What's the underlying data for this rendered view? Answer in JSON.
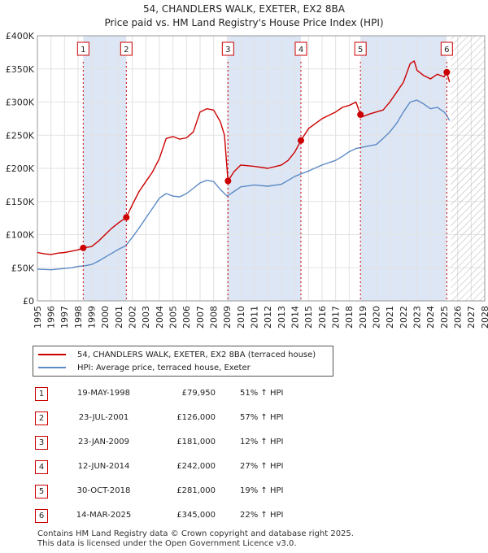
{
  "title_line1": "54, CHANDLERS WALK, EXETER, EX2 8BA",
  "title_line2": "Price paid vs. HM Land Registry's House Price Index (HPI)",
  "legend": {
    "property": "54, CHANDLERS WALK, EXETER, EX2 8BA (terraced house)",
    "hpi": "HPI: Average price, terraced house, Exeter"
  },
  "colors": {
    "property": "#cc0000",
    "hpi": "#5b8ac5",
    "shade": "#dde6f5",
    "marker": "#cc0000"
  },
  "sales": [
    {
      "num": "1",
      "date": "19-MAY-1998",
      "price": "£79,950",
      "hpi": "51% ↑ HPI"
    },
    {
      "num": "2",
      "date": "23-JUL-2001",
      "price": "£126,000",
      "hpi": "57% ↑ HPI"
    },
    {
      "num": "3",
      "date": "23-JAN-2009",
      "price": "£181,000",
      "hpi": "12% ↑ HPI"
    },
    {
      "num": "4",
      "date": "12-JUN-2014",
      "price": "£242,000",
      "hpi": "27% ↑ HPI"
    },
    {
      "num": "5",
      "date": "30-OCT-2018",
      "price": "£281,000",
      "hpi": "19% ↑ HPI"
    },
    {
      "num": "6",
      "date": "14-MAR-2025",
      "price": "£345,000",
      "hpi": "22% ↑ HPI"
    }
  ],
  "footer_line1": "Contains HM Land Registry data © Crown copyright and database right 2025.",
  "footer_line2": "This data is licensed under the Open Government Licence v3.0.",
  "chart_data": {
    "type": "line",
    "title": "54, CHANDLERS WALK, EXETER, EX2 8BA",
    "subtitle": "Price paid vs. HM Land Registry's House Price Index (HPI)",
    "xlabel": "",
    "ylabel": "",
    "xlim": [
      1995,
      2028
    ],
    "ylim": [
      0,
      400000
    ],
    "y_ticks": [
      0,
      50000,
      100000,
      150000,
      200000,
      250000,
      300000,
      350000,
      400000
    ],
    "y_tick_labels": [
      "£0",
      "£50K",
      "£100K",
      "£150K",
      "£200K",
      "£250K",
      "£300K",
      "£350K",
      "£400K"
    ],
    "x_ticks": [
      1995,
      1996,
      1997,
      1998,
      1999,
      2000,
      2001,
      2002,
      2003,
      2004,
      2005,
      2006,
      2007,
      2008,
      2009,
      2010,
      2011,
      2012,
      2013,
      2014,
      2015,
      2016,
      2017,
      2018,
      2019,
      2020,
      2021,
      2022,
      2023,
      2024,
      2025,
      2026,
      2027,
      2028
    ],
    "grid": true,
    "projection_start": 2025.5,
    "shaded_periods": [
      [
        1998.38,
        2001.56
      ],
      [
        2009.06,
        2014.44
      ],
      [
        2018.83,
        2025.2
      ]
    ],
    "sale_events": [
      {
        "label": "1",
        "x": 1998.38,
        "y": 79950
      },
      {
        "label": "2",
        "x": 2001.56,
        "y": 126000
      },
      {
        "label": "3",
        "x": 2009.06,
        "y": 181000
      },
      {
        "label": "4",
        "x": 2014.44,
        "y": 242000
      },
      {
        "label": "5",
        "x": 2018.83,
        "y": 281000
      },
      {
        "label": "6",
        "x": 2025.2,
        "y": 345000
      }
    ],
    "series": [
      {
        "name": "54, CHANDLERS WALK, EXETER, EX2 8BA (terraced house)",
        "x": [
          1995,
          1995.5,
          1996,
          1996.5,
          1997,
          1997.5,
          1998,
          1998.38,
          1999,
          1999.5,
          2000,
          2000.5,
          2001,
          2001.56,
          2002,
          2002.5,
          2003,
          2003.5,
          2004,
          2004.5,
          2005,
          2005.5,
          2006,
          2006.5,
          2007,
          2007.5,
          2008,
          2008.5,
          2008.8,
          2009.06,
          2009.5,
          2010,
          2011,
          2012,
          2013,
          2013.5,
          2014,
          2014.44,
          2015,
          2016,
          2017,
          2017.5,
          2018,
          2018.5,
          2018.83,
          2019,
          2019.5,
          2020,
          2020.5,
          2021,
          2021.5,
          2022,
          2022.5,
          2022.8,
          2023,
          2023.5,
          2024,
          2024.5,
          2025,
          2025.2,
          2025.4
        ],
        "values": [
          73000,
          71000,
          70000,
          72000,
          73000,
          75000,
          77000,
          79950,
          82000,
          90000,
          100000,
          110000,
          118000,
          126000,
          145000,
          165000,
          180000,
          195000,
          215000,
          245000,
          248000,
          244000,
          246000,
          255000,
          285000,
          290000,
          288000,
          270000,
          250000,
          181000,
          195000,
          205000,
          203000,
          200000,
          205000,
          212000,
          225000,
          242000,
          260000,
          275000,
          285000,
          292000,
          295000,
          300000,
          281000,
          278000,
          282000,
          285000,
          288000,
          300000,
          315000,
          330000,
          358000,
          362000,
          348000,
          340000,
          335000,
          342000,
          338000,
          345000,
          330000
        ]
      },
      {
        "name": "HPI: Average price, terraced house, Exeter",
        "x": [
          1995,
          1995.5,
          1996,
          1996.5,
          1997,
          1997.5,
          1998,
          1998.5,
          1999,
          1999.5,
          2000,
          2000.5,
          2001,
          2001.5,
          2002,
          2002.5,
          2003,
          2003.5,
          2004,
          2004.5,
          2005,
          2005.5,
          2006,
          2006.5,
          2007,
          2007.5,
          2008,
          2008.5,
          2009,
          2009.5,
          2010,
          2011,
          2012,
          2013,
          2013.5,
          2014,
          2014.5,
          2015,
          2016,
          2017,
          2017.5,
          2018,
          2018.5,
          2019,
          2019.5,
          2020,
          2020.5,
          2021,
          2021.5,
          2022,
          2022.5,
          2023,
          2023.5,
          2024,
          2024.5,
          2025,
          2025.2,
          2025.4
        ],
        "values": [
          48000,
          47500,
          47000,
          48000,
          49000,
          50000,
          52000,
          53000,
          55000,
          60000,
          66000,
          72000,
          78000,
          83000,
          96000,
          110000,
          125000,
          140000,
          155000,
          162000,
          158000,
          157000,
          162000,
          170000,
          178000,
          182000,
          180000,
          168000,
          158000,
          165000,
          172000,
          175000,
          173000,
          176000,
          182000,
          188000,
          192000,
          196000,
          205000,
          212000,
          218000,
          225000,
          230000,
          232000,
          234000,
          236000,
          245000,
          255000,
          268000,
          285000,
          300000,
          303000,
          297000,
          290000,
          292000,
          285000,
          280000,
          272000
        ]
      }
    ]
  }
}
